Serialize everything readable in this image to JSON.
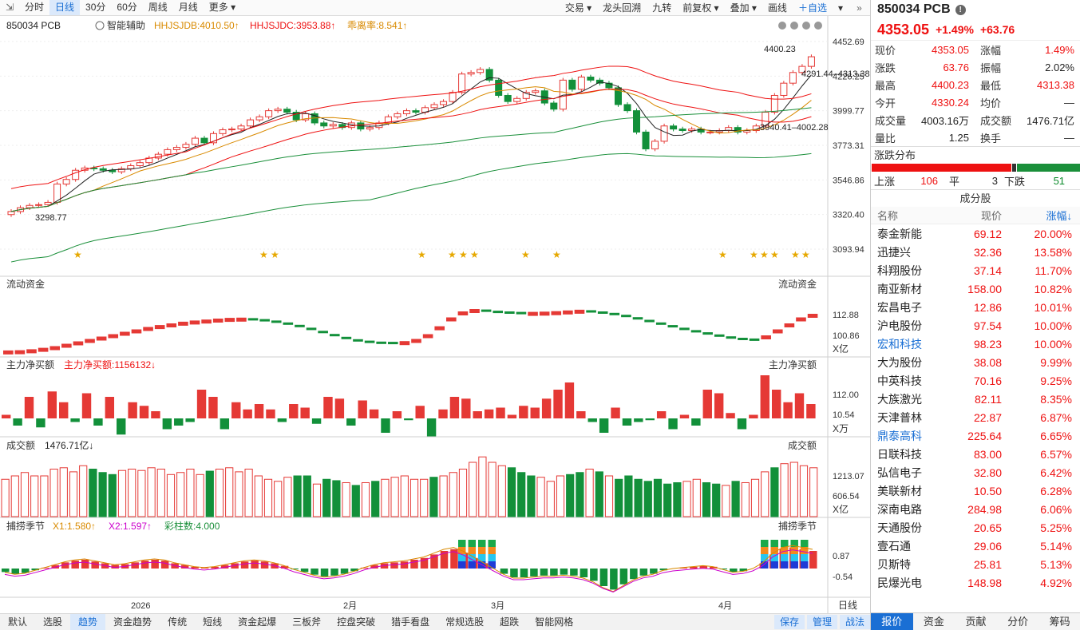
{
  "toolbar": {
    "periods": [
      "分时",
      "日线",
      "30分",
      "60分",
      "周线",
      "月线",
      "更多"
    ],
    "active": 1,
    "right": [
      "交易",
      "龙头回溯",
      "九转",
      "前复权",
      "叠加",
      "画线"
    ],
    "add_watch": "自选"
  },
  "chart": {
    "symbol": "850034 PCB",
    "indicator_tool": "智能辅助",
    "hhjsjdb": "HHJSJDB:4010.50",
    "hhjsjdc": "HHJSJDC:3953.88",
    "deviation": "乖离率:8.541",
    "price_ticks": [
      "4452.69",
      "4226.25",
      "3999.77",
      "3773.31",
      "3546.86",
      "3320.40",
      "3093.94"
    ],
    "annot_high": "4400.23",
    "annot_ohlc": "4291.44–4313.38",
    "annot_low": "3298.77",
    "annot_mid": "3940.41–4002.28",
    "panel_flow": "流动资金",
    "flow_ticks": [
      "112.88",
      "100.86"
    ],
    "flow_unit": "X亿",
    "panel_main": "主力净买额",
    "main_val": "主力净买额:1156132",
    "main_ticks": [
      "112.00",
      "10.54"
    ],
    "main_unit": "X万",
    "panel_vol": "成交额",
    "vol_val": "1476.71亿",
    "vol_ticks": [
      "1213.07",
      "606.54"
    ],
    "vol_unit": "X亿",
    "panel_season": "捕捞季节",
    "x1": "X1:1.580",
    "x2": "X2:1.597",
    "bars": "彩柱数:4.000",
    "season_ticks": [
      "0.87",
      "-0.54"
    ],
    "x_labels": [
      "2026",
      "2月",
      "3月",
      "4月"
    ],
    "x_mode": "日线"
  },
  "bottom": {
    "tabs": [
      "默认",
      "选股",
      "趋势",
      "资金趋势",
      "传统",
      "短线",
      "资金起爆",
      "三板斧",
      "控盘突破",
      "猎手看盘",
      "常规选股",
      "超跌",
      "智能网格"
    ],
    "active": 2,
    "right": [
      "保存",
      "管理",
      "战法"
    ]
  },
  "quote": {
    "code": "850034 PCB",
    "price": "4353.05",
    "pct": "+1.49%",
    "chg": "+63.76",
    "rows": [
      [
        "现价",
        "4353.05",
        "red",
        "涨幅",
        "1.49%",
        "red"
      ],
      [
        "涨跌",
        "63.76",
        "red",
        "振幅",
        "2.02%",
        "blk"
      ],
      [
        "最高",
        "4400.23",
        "red",
        "最低",
        "4313.38",
        "red"
      ],
      [
        "今开",
        "4330.24",
        "red",
        "均价",
        "—",
        "blk"
      ],
      [
        "成交量",
        "4003.16万",
        "blk",
        "成交额",
        "1476.71亿",
        "blk"
      ],
      [
        "量比",
        "1.25",
        "blk",
        "换手",
        "—",
        "blk"
      ]
    ],
    "dist_title": "涨跌分布",
    "up_label": "上涨",
    "up": "106",
    "flat_label": "平",
    "flat": "3",
    "down_label": "下跌",
    "down": "51",
    "comp_title": "成分股",
    "hdr": [
      "名称",
      "现价",
      "涨幅↓"
    ],
    "stocks": [
      [
        "泰金新能",
        "69.12",
        "20.00%",
        "blk"
      ],
      [
        "迅捷兴",
        "32.36",
        "13.58%",
        "blk"
      ],
      [
        "科翔股份",
        "37.14",
        "11.70%",
        "blk"
      ],
      [
        "南亚新材",
        "158.00",
        "10.82%",
        "blk"
      ],
      [
        "宏昌电子",
        "12.86",
        "10.01%",
        "blk"
      ],
      [
        "沪电股份",
        "97.54",
        "10.00%",
        "blk"
      ],
      [
        "宏和科技",
        "98.23",
        "10.00%",
        "blue"
      ],
      [
        "大为股份",
        "38.08",
        "9.99%",
        "blk"
      ],
      [
        "中英科技",
        "70.16",
        "9.25%",
        "blk"
      ],
      [
        "大族激光",
        "82.11",
        "8.35%",
        "blk"
      ],
      [
        "天津普林",
        "22.87",
        "6.87%",
        "blk"
      ],
      [
        "鼎泰高科",
        "225.64",
        "6.65%",
        "blue"
      ],
      [
        "日联科技",
        "83.00",
        "6.57%",
        "blk"
      ],
      [
        "弘信电子",
        "32.80",
        "6.42%",
        "blk"
      ],
      [
        "美联新材",
        "10.50",
        "6.28%",
        "blk"
      ],
      [
        "深南电路",
        "284.98",
        "6.06%",
        "blk"
      ],
      [
        "天通股份",
        "20.65",
        "5.25%",
        "blk"
      ],
      [
        "壹石通",
        "29.06",
        "5.14%",
        "blk"
      ],
      [
        "贝斯特",
        "25.81",
        "5.13%",
        "blk"
      ],
      [
        "民爆光电",
        "148.98",
        "4.92%",
        "blk"
      ]
    ],
    "tabs": [
      "报价",
      "资金",
      "贡献",
      "分价",
      "筹码"
    ],
    "tab_active": 0
  },
  "chart_data": {
    "type": "candlestick",
    "price_range": [
      3093.94,
      4452.69
    ],
    "close": [
      3340,
      3365,
      3380,
      3385,
      3400,
      3520,
      3550,
      3610,
      3625,
      3620,
      3610,
      3600,
      3620,
      3640,
      3660,
      3690,
      3715,
      3745,
      3760,
      3780,
      3820,
      3790,
      3850,
      3875,
      3880,
      3900,
      3940,
      3960,
      4000,
      4010,
      3990,
      3940,
      3980,
      3920,
      3900,
      3910,
      3890,
      3920,
      3880,
      3890,
      3920,
      3960,
      3980,
      4000,
      3990,
      4020,
      4040,
      4060,
      4120,
      4240,
      4250,
      4270,
      4200,
      4100,
      4060,
      4080,
      4120,
      4130,
      4050,
      4010,
      4200,
      4140,
      4220,
      4200,
      4180,
      4150,
      4040,
      4000,
      3860,
      3750,
      3800,
      3900,
      3880,
      3870,
      3880,
      3860,
      3860,
      3870,
      3890,
      3860,
      3870,
      3900,
      3990,
      4100,
      4180,
      4250,
      4290,
      4353
    ],
    "flow": [
      -0.3,
      -0.2,
      0.2,
      0.8,
      1.5,
      2.5,
      3.5,
      4.5,
      5.5,
      6.5,
      7.5,
      8.5,
      9.5,
      10.3,
      11.0,
      11.7,
      12.2,
      12.6,
      13.0,
      13.3,
      13.4,
      13.2,
      12.8,
      12.2,
      11.4,
      10.4,
      9.2,
      7.9,
      6.6,
      5.4,
      4.4,
      3.8,
      3.4,
      3.3,
      3.6,
      4.5,
      6.5,
      9.8,
      13.5,
      16.0,
      17.0,
      16.8,
      16.3,
      16.0,
      15.8,
      15.8,
      15.9,
      16.1,
      16.4,
      16.7,
      16.5,
      16.0,
      15.4,
      14.6,
      13.6,
      12.5,
      11.4,
      10.3,
      9.2,
      8.2,
      7.3,
      6.4,
      5.6,
      5.0,
      4.7,
      6.0,
      8.5,
      11.0,
      13.5,
      15.0
    ],
    "main": [
      10,
      -20,
      60,
      -25,
      75,
      45,
      -10,
      70,
      -20,
      60,
      -45,
      45,
      35,
      20,
      -30,
      -20,
      -10,
      80,
      60,
      -30,
      45,
      25,
      40,
      25,
      -10,
      40,
      30,
      -15,
      60,
      55,
      -20,
      50,
      25,
      -40,
      20,
      -5,
      35,
      -50,
      25,
      60,
      55,
      20,
      25,
      30,
      10,
      35,
      30,
      55,
      80,
      100,
      20,
      -10,
      -40,
      30,
      -20,
      -10,
      -5,
      20,
      -30,
      10,
      -20,
      80,
      70,
      15,
      -30,
      10,
      120,
      80,
      45,
      70,
      40
    ],
    "vol": [
      0.55,
      0.6,
      0.65,
      0.6,
      0.6,
      0.7,
      0.72,
      0.66,
      0.75,
      0.7,
      0.65,
      0.62,
      0.68,
      0.7,
      0.68,
      0.72,
      0.7,
      0.62,
      0.65,
      0.7,
      0.62,
      0.67,
      0.7,
      0.72,
      0.66,
      0.7,
      0.6,
      0.55,
      0.52,
      0.58,
      0.6,
      0.6,
      0.48,
      0.55,
      0.53,
      0.5,
      0.46,
      0.5,
      0.52,
      0.55,
      0.58,
      0.6,
      0.55,
      0.55,
      0.58,
      0.6,
      0.65,
      0.7,
      0.8,
      0.88,
      0.8,
      0.75,
      0.72,
      0.65,
      0.6,
      0.58,
      0.52,
      0.6,
      0.62,
      0.65,
      0.7,
      0.66,
      0.6,
      0.55,
      0.6,
      0.55,
      0.52,
      0.55,
      0.48,
      0.5,
      0.52,
      0.55,
      0.5,
      0.48,
      0.46,
      0.52,
      0.5,
      0.55,
      0.66,
      0.72,
      0.78,
      0.8,
      0.75,
      0.72
    ],
    "season": [
      -0.2,
      -0.3,
      -0.25,
      -0.1,
      0.05,
      0.2,
      0.35,
      0.45,
      0.5,
      0.4,
      0.3,
      0.2,
      0.25,
      0.35,
      0.45,
      0.5,
      0.45,
      0.3,
      0.2,
      0.1,
      0.05,
      0.1,
      0.2,
      0.3,
      0.4,
      0.45,
      0.4,
      0.3,
      0.15,
      -0.05,
      -0.2,
      -0.35,
      -0.45,
      -0.4,
      -0.3,
      -0.15,
      0.05,
      0.2,
      0.3,
      0.35,
      0.4,
      0.5,
      0.6,
      0.8,
      1.0,
      1.1,
      0.9,
      0.6,
      0.3,
      0.0,
      -0.3,
      -0.5,
      -0.5,
      -0.45,
      -0.4,
      -0.4,
      -0.35,
      -0.4,
      -0.5,
      -0.7,
      -1.0,
      -1.2,
      -0.9,
      -0.6,
      -0.4,
      -0.3,
      -0.1,
      0.0,
      0.05,
      0.1,
      0.15,
      0.1,
      -0.05,
      -0.2,
      -0.15,
      0.0,
      0.3,
      0.8,
      1.1,
      1.2,
      1.1,
      1.0
    ]
  }
}
